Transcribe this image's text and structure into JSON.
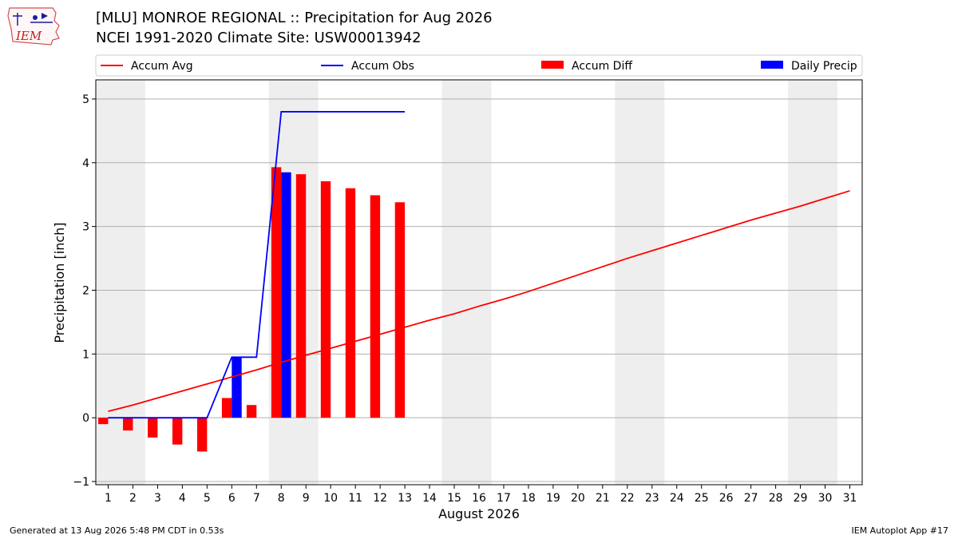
{
  "header": {
    "title_line1": "[MLU] MONROE REGIONAL :: Precipitation for Aug 2026",
    "title_line2": "NCEI 1991-2020 Climate Site: USW00013942"
  },
  "logo": {
    "text": "IEM"
  },
  "footer": {
    "left": "Generated at 13 Aug 2026 5:48 PM CDT in 0.53s",
    "right": "IEM Autoplot App #17"
  },
  "chart_data": {
    "type": "bar",
    "xlabel": "August 2026",
    "ylabel": "Precipitation [inch]",
    "xlim": [
      0.5,
      31.5
    ],
    "ylim": [
      -1.05,
      5.3
    ],
    "yticks": [
      -1,
      0,
      1,
      2,
      3,
      4,
      5
    ],
    "x": [
      1,
      2,
      3,
      4,
      5,
      6,
      7,
      8,
      9,
      10,
      11,
      12,
      13,
      14,
      15,
      16,
      17,
      18,
      19,
      20,
      21,
      22,
      23,
      24,
      25,
      26,
      27,
      28,
      29,
      30,
      31
    ],
    "weekend_bands": [
      [
        0.5,
        2.5
      ],
      [
        7.5,
        9.5
      ],
      [
        14.5,
        16.5
      ],
      [
        21.5,
        23.5
      ],
      [
        28.5,
        30.5
      ]
    ],
    "grid": "horizontal",
    "legend": {
      "placement": "top",
      "entries": [
        "Accum Avg",
        "Accum Obs",
        "Accum Diff",
        "Daily Precip"
      ]
    },
    "series": [
      {
        "name": "Accum Avg",
        "type": "line",
        "color": "#ff0000",
        "x": [
          1,
          2,
          3,
          4,
          5,
          6,
          7,
          8,
          9,
          10,
          11,
          12,
          13,
          14,
          15,
          16,
          17,
          18,
          19,
          20,
          21,
          22,
          23,
          24,
          25,
          26,
          27,
          28,
          29,
          30,
          31
        ],
        "values": [
          0.1,
          0.2,
          0.31,
          0.42,
          0.53,
          0.64,
          0.75,
          0.87,
          0.98,
          1.09,
          1.2,
          1.31,
          1.42,
          1.53,
          1.63,
          1.75,
          1.86,
          1.98,
          2.11,
          2.24,
          2.37,
          2.5,
          2.62,
          2.74,
          2.86,
          2.98,
          3.1,
          3.21,
          3.32,
          3.44,
          3.56
        ]
      },
      {
        "name": "Accum Obs",
        "type": "line",
        "color": "#0000ff",
        "x": [
          1,
          2,
          3,
          4,
          5,
          6,
          7,
          8,
          9,
          10,
          11,
          12,
          13
        ],
        "values": [
          0,
          0,
          0,
          0,
          0,
          0.95,
          0.95,
          4.8,
          4.8,
          4.8,
          4.8,
          4.8,
          4.8
        ]
      },
      {
        "name": "Accum Diff",
        "type": "bar",
        "color": "#ff0000",
        "x": [
          1,
          2,
          3,
          4,
          5,
          6,
          7,
          8,
          9,
          10,
          11,
          12,
          13
        ],
        "values": [
          -0.1,
          -0.2,
          -0.31,
          -0.42,
          -0.53,
          0.31,
          0.2,
          3.93,
          3.82,
          3.71,
          3.6,
          3.49,
          3.38
        ]
      },
      {
        "name": "Daily Precip",
        "type": "bar",
        "color": "#0000ff",
        "x": [
          6,
          8
        ],
        "values": [
          0.95,
          3.85
        ]
      }
    ]
  }
}
